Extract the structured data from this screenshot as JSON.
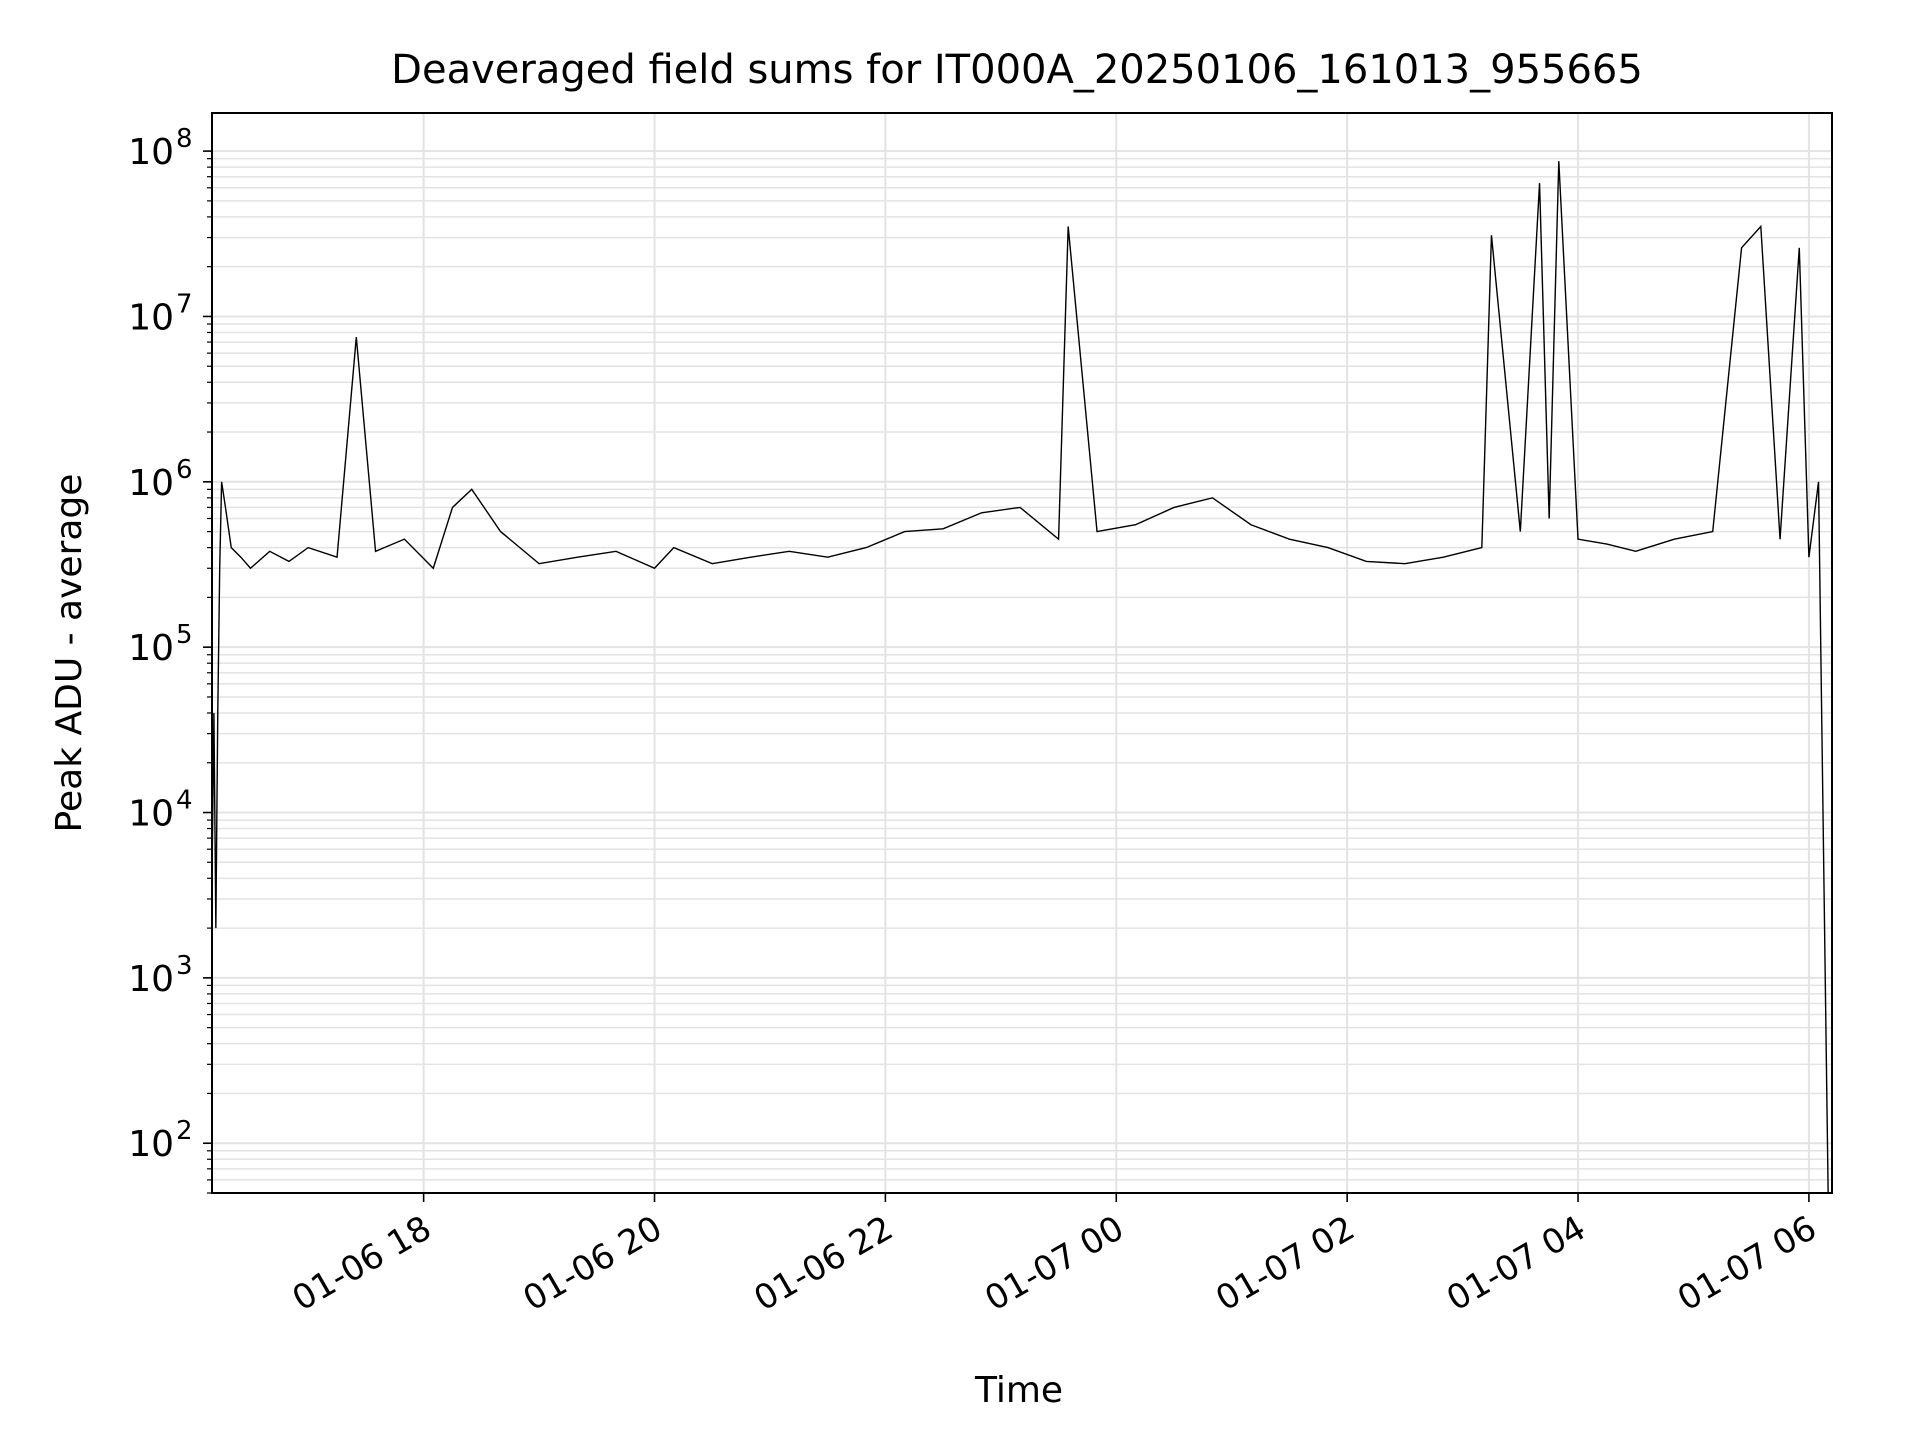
{
  "chart_data": {
    "type": "line",
    "title": "Deaveraged field sums for IT000A_20250106_161013_955665",
    "xlabel": "Time",
    "ylabel": "Peak ADU - average",
    "y_scale": "log",
    "ylim": [
      50,
      170000000
    ],
    "xlim": [
      "2025-01-06 16:10",
      "2025-01-07 06:12"
    ],
    "x_ticks": [
      "2025-01-06 18:00",
      "2025-01-06 20:00",
      "2025-01-06 22:00",
      "2025-01-07 00:00",
      "2025-01-07 02:00",
      "2025-01-07 04:00",
      "2025-01-07 06:00"
    ],
    "x_tick_labels": [
      "01-06 18",
      "01-06 20",
      "01-06 22",
      "01-07 00",
      "01-07 02",
      "01-07 04",
      "01-07 06"
    ],
    "y_ticks": [
      100,
      1000,
      10000,
      100000,
      1000000,
      10000000,
      100000000
    ],
    "y_tick_base": "10",
    "y_tick_exponents": [
      "2",
      "3",
      "4",
      "5",
      "6",
      "7",
      "8"
    ],
    "grid": true,
    "line_color": "#000000",
    "grid_color": "#e3e3e3",
    "series": [
      {
        "x": [
          "2025-01-06 16:10",
          "2025-01-06 16:11",
          "2025-01-06 16:12",
          "2025-01-06 16:13",
          "2025-01-06 16:14",
          "2025-01-06 16:15",
          "2025-01-06 16:17",
          "2025-01-06 16:20",
          "2025-01-06 16:25",
          "2025-01-06 16:30",
          "2025-01-06 16:40",
          "2025-01-06 16:50",
          "2025-01-06 17:00",
          "2025-01-06 17:15",
          "2025-01-06 17:25",
          "2025-01-06 17:35",
          "2025-01-06 17:50",
          "2025-01-06 18:05",
          "2025-01-06 18:15",
          "2025-01-06 18:25",
          "2025-01-06 18:40",
          "2025-01-06 19:00",
          "2025-01-06 19:20",
          "2025-01-06 19:40",
          "2025-01-06 20:00",
          "2025-01-06 20:10",
          "2025-01-06 20:30",
          "2025-01-06 20:50",
          "2025-01-06 21:10",
          "2025-01-06 21:30",
          "2025-01-06 21:50",
          "2025-01-06 22:10",
          "2025-01-06 22:30",
          "2025-01-06 22:50",
          "2025-01-06 23:10",
          "2025-01-06 23:30",
          "2025-01-06 23:35",
          "2025-01-06 23:50",
          "2025-01-07 00:10",
          "2025-01-07 00:30",
          "2025-01-07 00:50",
          "2025-01-07 01:10",
          "2025-01-07 01:30",
          "2025-01-07 01:50",
          "2025-01-07 02:10",
          "2025-01-07 02:30",
          "2025-01-07 02:50",
          "2025-01-07 03:10",
          "2025-01-07 03:15",
          "2025-01-07 03:30",
          "2025-01-07 03:40",
          "2025-01-07 03:45",
          "2025-01-07 03:50",
          "2025-01-07 04:00",
          "2025-01-07 04:15",
          "2025-01-07 04:30",
          "2025-01-07 04:50",
          "2025-01-07 05:10",
          "2025-01-07 05:25",
          "2025-01-07 05:35",
          "2025-01-07 05:45",
          "2025-01-07 05:55",
          "2025-01-07 06:00",
          "2025-01-07 06:05",
          "2025-01-07 06:10"
        ],
        "values": [
          4000,
          40000,
          2000,
          40000,
          300000,
          1000000,
          700000,
          400000,
          350000,
          300000,
          380000,
          330000,
          400000,
          350000,
          7500000,
          380000,
          450000,
          300000,
          700000,
          900000,
          500000,
          320000,
          350000,
          380000,
          300000,
          400000,
          320000,
          350000,
          380000,
          350000,
          400000,
          500000,
          520000,
          650000,
          700000,
          450000,
          35000000,
          500000,
          550000,
          700000,
          800000,
          550000,
          450000,
          400000,
          330000,
          320000,
          350000,
          400000,
          31000000,
          500000,
          64000000,
          600000,
          87000000,
          450000,
          420000,
          380000,
          450000,
          500000,
          26000000,
          35000000,
          450000,
          26000000,
          350000,
          1000000,
          50
        ]
      }
    ]
  }
}
